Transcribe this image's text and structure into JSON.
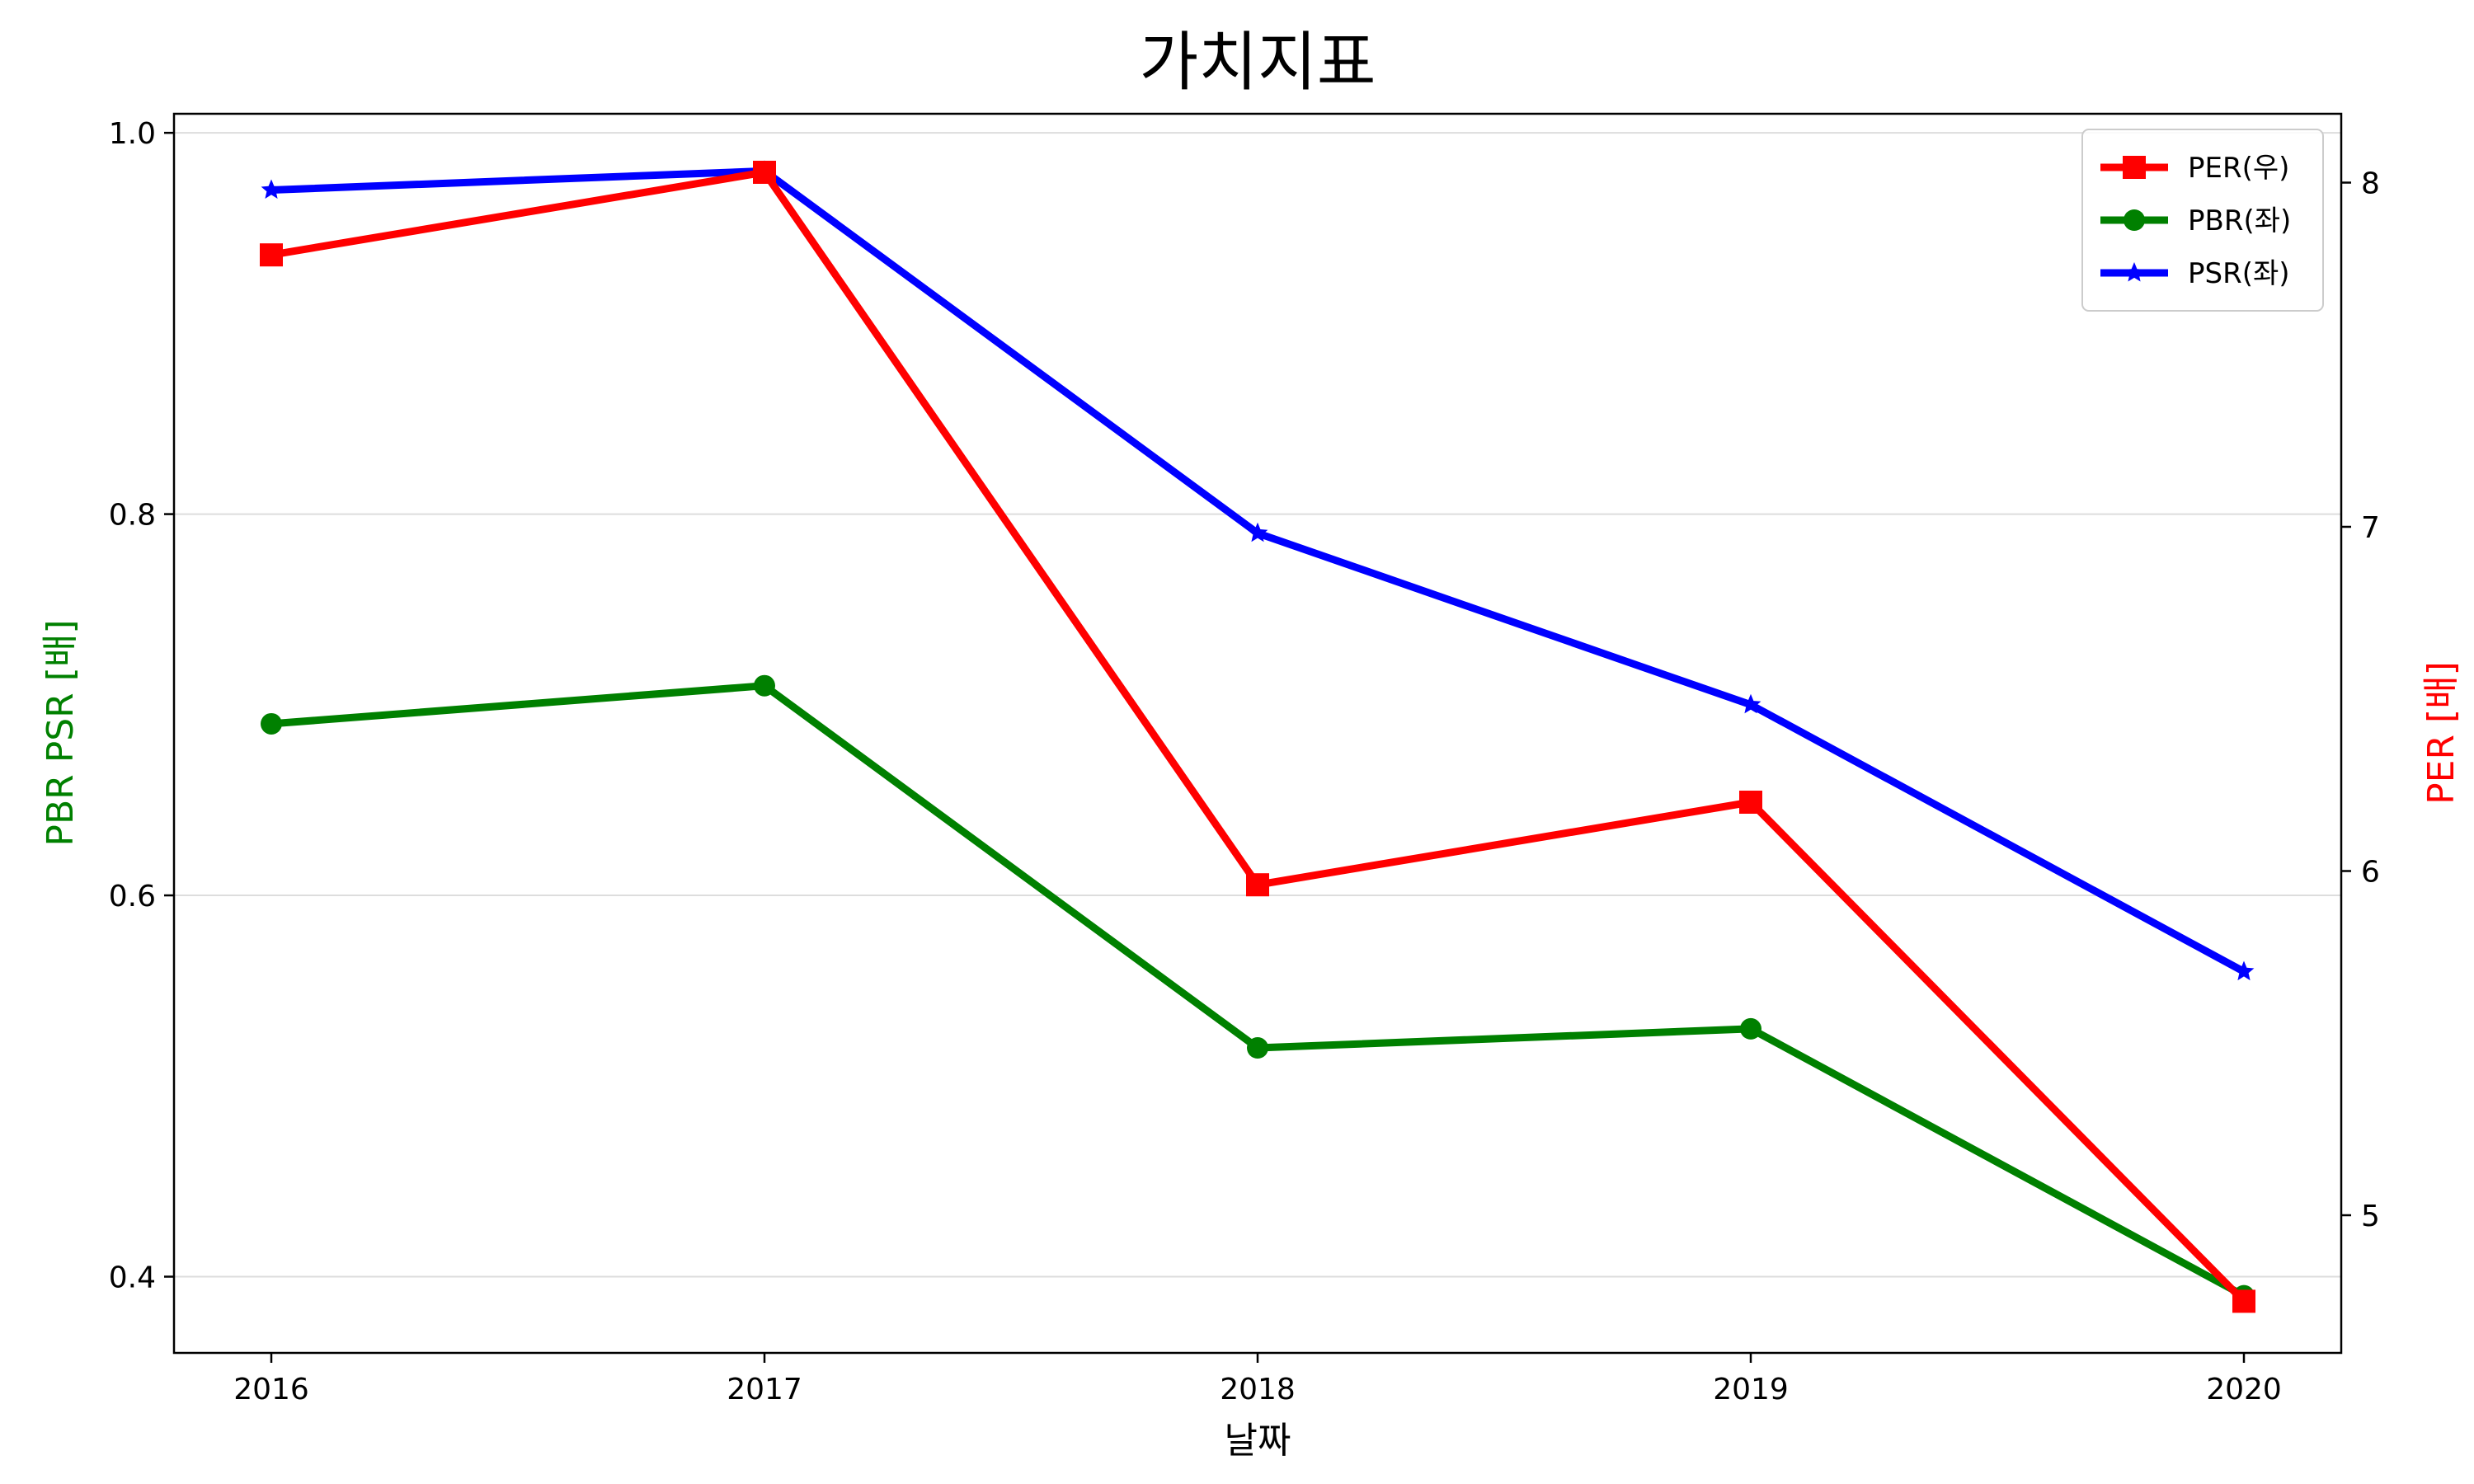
{
  "chart_data": {
    "type": "line",
    "title": "가치지표",
    "xlabel": "날짜",
    "ylabel_left": "PBR PSR [배]",
    "ylabel_right": "PER [배]",
    "ylabel_left_color": "#008000",
    "ylabel_right_color": "#ff0000",
    "categories": [
      "2016",
      "2017",
      "2018",
      "2019",
      "2020"
    ],
    "ylim_left": [
      0.36,
      1.01
    ],
    "ylim_right": [
      4.6,
      8.2
    ],
    "yticks_left": [
      "0.4",
      "0.6",
      "0.8",
      "1.0"
    ],
    "yticks_right": [
      "5",
      "6",
      "7",
      "8"
    ],
    "grid": "horizontal, left axis",
    "legend_position": "top-right",
    "series": [
      {
        "name": "PER(우)",
        "axis": "right",
        "color": "#ff0000",
        "marker": "square",
        "values": [
          7.79,
          8.03,
          5.96,
          6.2,
          4.75
        ]
      },
      {
        "name": "PBR(좌)",
        "axis": "left",
        "color": "#008000",
        "marker": "circle",
        "values": [
          0.69,
          0.71,
          0.52,
          0.53,
          0.39
        ]
      },
      {
        "name": "PSR(좌)",
        "axis": "left",
        "color": "#0000ff",
        "marker": "star",
        "values": [
          0.97,
          0.98,
          0.79,
          0.7,
          0.56
        ]
      }
    ]
  }
}
